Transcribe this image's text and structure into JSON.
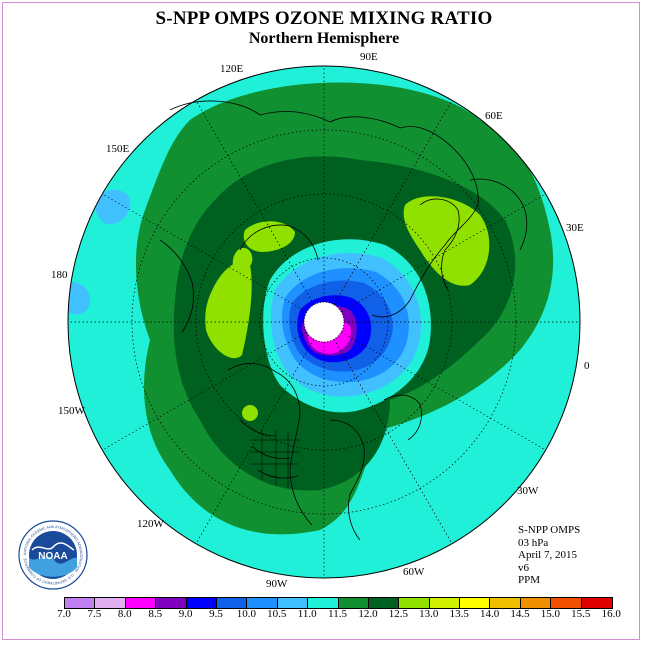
{
  "title": "S-NPP OMPS OZONE MIXING RATIO",
  "subtitle": "Northern Hemisphere",
  "longitude_labels": {
    "e90": "90E",
    "e60": "60E",
    "e30": "30E",
    "e0": "0",
    "w30": "30W",
    "w60": "60W",
    "w90": "90W",
    "w120": "120W",
    "w150": "150W",
    "d180": "180",
    "e150": "150E",
    "e120": "120E"
  },
  "info": {
    "instrument": "S-NPP OMPS",
    "level": "03 hPa",
    "date": "April 7, 2015",
    "version": "v6",
    "units": "PPM"
  },
  "logo": {
    "text": "NOAA",
    "ring_text": "NATIONAL OCEANIC AND ATMOSPHERIC ADMINISTRATION · U.S. DEPARTMENT OF COMMERCE"
  },
  "colorbar": {
    "ticks": [
      "7.0",
      "7.5",
      "8.0",
      "8.5",
      "9.0",
      "9.5",
      "10.0",
      "10.5",
      "11.0",
      "11.5",
      "12.0",
      "12.5",
      "13.0",
      "13.5",
      "14.0",
      "14.5",
      "15.0",
      "15.5",
      "16.0"
    ],
    "colors": [
      "#c080f0",
      "#e0b0f0",
      "#ff00ff",
      "#8000c0",
      "#0000ff",
      "#1060e8",
      "#1e90ff",
      "#40c0ff",
      "#20f0d8",
      "#109030",
      "#006020",
      "#90e000",
      "#d0f000",
      "#ffff00",
      "#f0c000",
      "#f09000",
      "#f05000",
      "#e00000",
      "#806040"
    ]
  },
  "map_colors": {
    "background_level": "#20f0d8",
    "level_11_5": "#109030",
    "level_12_0": "#006020",
    "level_12_5": "#90e000",
    "level_10_5": "#40c0ff",
    "level_10_0": "#1e90ff",
    "level_9_5": "#1060e8",
    "level_9_0": "#0000ff",
    "level_8_5": "#8000c0",
    "level_8_0": "#ff00ff",
    "polar_night": "#ffffff"
  }
}
